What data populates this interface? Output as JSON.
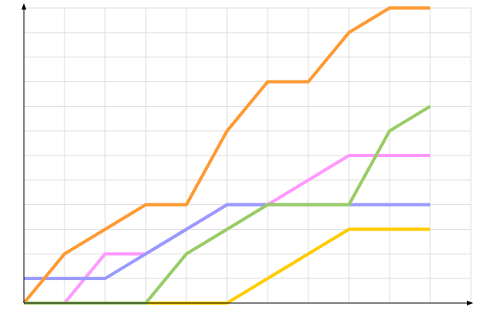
{
  "chart_data": {
    "type": "line",
    "title": "",
    "xlabel": "",
    "ylabel": "",
    "x": [
      0,
      1,
      2,
      3,
      4,
      5,
      6,
      7,
      8,
      9,
      10
    ],
    "xlim": [
      0,
      11
    ],
    "ylim": [
      0,
      12
    ],
    "grid": true,
    "legend": "none",
    "series": [
      {
        "color": "#ffcc00",
        "values": [
          0,
          0,
          0,
          0,
          0,
          0,
          1,
          2,
          3,
          3,
          3
        ]
      },
      {
        "color": "#ff99ff",
        "values": [
          0,
          0,
          2,
          2,
          3,
          4,
          4,
          5,
          6,
          6,
          6
        ]
      },
      {
        "color": "#9999ff",
        "values": [
          1,
          1,
          1,
          2,
          3,
          4,
          4,
          4,
          4,
          4,
          4
        ]
      },
      {
        "color": "#ff9933",
        "values": [
          0,
          2,
          3,
          4,
          4,
          7,
          9,
          9,
          11,
          12,
          12
        ]
      },
      {
        "color": "#99cc66",
        "values": [
          0,
          0,
          0,
          0,
          2,
          3,
          4,
          4,
          4,
          7,
          8
        ]
      }
    ]
  }
}
